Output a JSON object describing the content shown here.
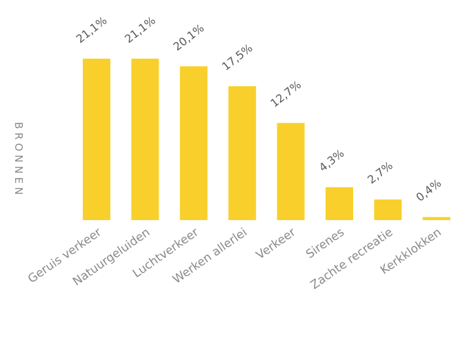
{
  "chart_data": {
    "type": "bar",
    "ylabel": "BRONNEN",
    "categories": [
      "Geruis verkeer",
      "Natuurgeluiden",
      "Luchtverkeer",
      "Werken allerlei",
      "Verkeer",
      "Sirenes",
      "Zachte recreatie",
      "Kerkklokken"
    ],
    "values": [
      21.1,
      21.1,
      20.1,
      17.5,
      12.7,
      4.3,
      2.7,
      0.4
    ],
    "data_labels": [
      "21,1%",
      "21,1%",
      "20,1%",
      "17,5%",
      "12,7%",
      "4,3%",
      "2,7%",
      "0,4%"
    ],
    "ylim": [
      0,
      21.1
    ],
    "bar_color": "#f9d02b",
    "grid": false,
    "legend": "none"
  }
}
